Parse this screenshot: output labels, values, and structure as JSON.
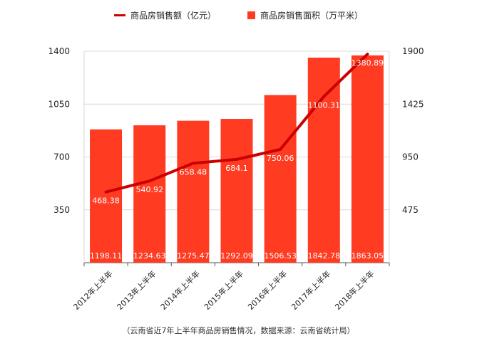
{
  "colors": {
    "bar": "#FF3B22",
    "line": "#CC0000",
    "grid": "#D9D9D9",
    "axis": "#555555"
  },
  "legend": {
    "line_label": "商品房销售额（亿元）",
    "bar_label": "商品房销售面积（万平米）"
  },
  "caption": "（云南省近7年上半年商品房销售情况，数据来源：云南省统计局）",
  "chart_data": {
    "type": "bar",
    "categories": [
      "2012年上半年",
      "2013年上半年",
      "2014年上半年",
      "2015年上半年",
      "2016年上半年",
      "2017年上半年",
      "2018年上半年"
    ],
    "series": [
      {
        "name": "商品房销售面积（万平米）",
        "type": "bar",
        "axis": "right",
        "values": [
          1198.11,
          1234.63,
          1275.47,
          1292.09,
          1506.53,
          1842.78,
          1863.05
        ]
      },
      {
        "name": "商品房销售额（亿元）",
        "type": "line",
        "axis": "left",
        "values": [
          468.38,
          540.92,
          658.48,
          684.1,
          750.06,
          1100.31,
          1380.89
        ]
      }
    ],
    "y_left": {
      "ticks": [
        "350",
        "700",
        "1050",
        "1400"
      ],
      "ylim": [
        0,
        1400
      ]
    },
    "y_right": {
      "ticks": [
        "475",
        "950",
        "1425",
        "1900"
      ],
      "ylim": [
        0,
        1900
      ]
    },
    "grid": true,
    "legend_position": "top"
  }
}
